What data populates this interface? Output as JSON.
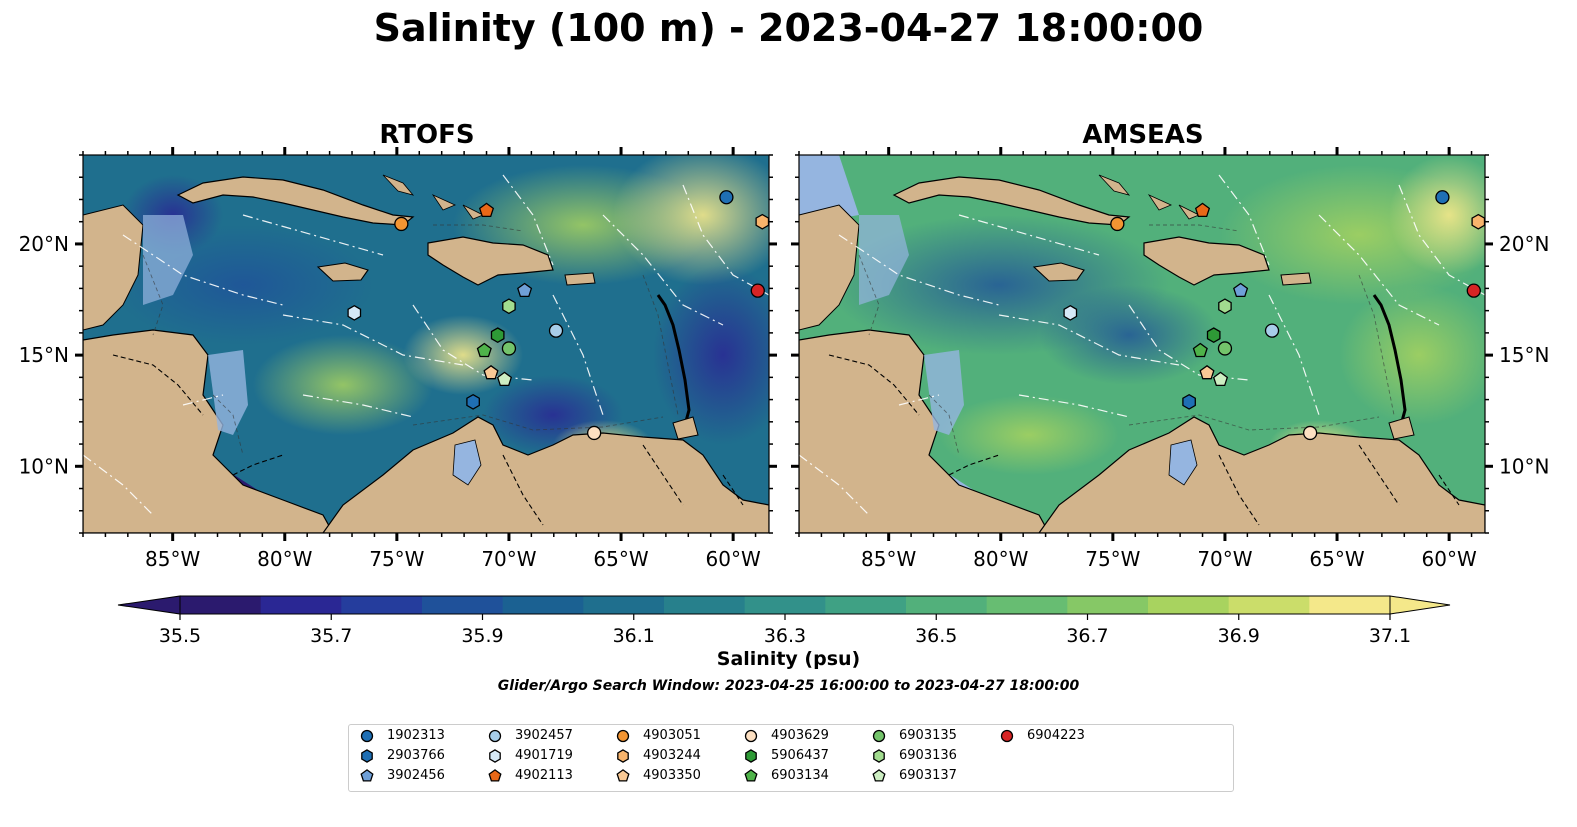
{
  "title": "Salinity (100 m) - 2023-04-27 18:00:00",
  "panels": [
    {
      "title": "RTOFS"
    },
    {
      "title": "AMSEAS"
    }
  ],
  "axes": {
    "lon_ticks": [
      -85,
      -80,
      -75,
      -70,
      -65,
      -60
    ],
    "lon_labels": [
      "85°W",
      "80°W",
      "75°W",
      "70°W",
      "65°W",
      "60°W"
    ],
    "lat_ticks": [
      10,
      15,
      20
    ],
    "lat_labels": [
      "10°N",
      "15°N",
      "20°N"
    ],
    "lon_range": [
      -89,
      -58.4
    ],
    "lat_range": [
      7,
      24
    ]
  },
  "colorbar": {
    "label": "Salinity (psu)",
    "ticks": [
      "35.5",
      "35.7",
      "35.9",
      "36.1",
      "36.3",
      "36.5",
      "36.7",
      "36.9",
      "37.1"
    ],
    "range": [
      35.5,
      37.1
    ],
    "colors": [
      "#2b1a6e",
      "#2a2794",
      "#253d9d",
      "#1f519a",
      "#1b6192",
      "#1f6f8e",
      "#27808c",
      "#32918a",
      "#3fa184",
      "#52b07b",
      "#67bd72",
      "#86c866",
      "#a8d35f",
      "#cbdd6a",
      "#f4e88a"
    ]
  },
  "search_window": "Glider/Argo Search Window: 2023-04-25 16:00:00 to 2023-04-27 18:00:00",
  "floats": [
    {
      "id": "1902313",
      "marker": "circle",
      "color": "#1f6fb4",
      "lon": -60.3,
      "lat": 22.1
    },
    {
      "id": "2903766",
      "marker": "hexagon",
      "color": "#1f6fb4",
      "lon": -71.6,
      "lat": 12.9
    },
    {
      "id": "3902456",
      "marker": "pentagon",
      "color": "#6fa0d8",
      "lon": -69.3,
      "lat": 17.9
    },
    {
      "id": "3902457",
      "marker": "circle",
      "color": "#a7cde9",
      "lon": -67.9,
      "lat": 16.1
    },
    {
      "id": "4901719",
      "marker": "hexagon",
      "color": "#d6e9f7",
      "lon": -76.9,
      "lat": 16.9
    },
    {
      "id": "4902113",
      "marker": "pentagon",
      "color": "#e96818",
      "lon": -71.0,
      "lat": 21.5
    },
    {
      "id": "4903051",
      "marker": "circle",
      "color": "#f39532",
      "lon": -74.8,
      "lat": 20.9
    },
    {
      "id": "4903244",
      "marker": "hexagon",
      "color": "#f8b46c",
      "lon": -58.7,
      "lat": 21.0
    },
    {
      "id": "4903350",
      "marker": "pentagon",
      "color": "#f9c995",
      "lon": -70.8,
      "lat": 14.2
    },
    {
      "id": "4903629",
      "marker": "circle",
      "color": "#fde0c2",
      "lon": -66.2,
      "lat": 11.5
    },
    {
      "id": "5906437",
      "marker": "hexagon",
      "color": "#2e9a36",
      "lon": -70.5,
      "lat": 15.9
    },
    {
      "id": "6903134",
      "marker": "pentagon",
      "color": "#4fb34a",
      "lon": -71.1,
      "lat": 15.2
    },
    {
      "id": "6903135",
      "marker": "circle",
      "color": "#74c46b",
      "lon": -70.0,
      "lat": 15.3
    },
    {
      "id": "6903136",
      "marker": "hexagon",
      "color": "#a2dc8f",
      "lon": -70.0,
      "lat": 17.2
    },
    {
      "id": "6903137",
      "marker": "pentagon",
      "color": "#cdeec2",
      "lon": -70.2,
      "lat": 13.9
    },
    {
      "id": "6904223",
      "marker": "circle",
      "color": "#d62424",
      "lon": -58.9,
      "lat": 17.9
    }
  ]
}
